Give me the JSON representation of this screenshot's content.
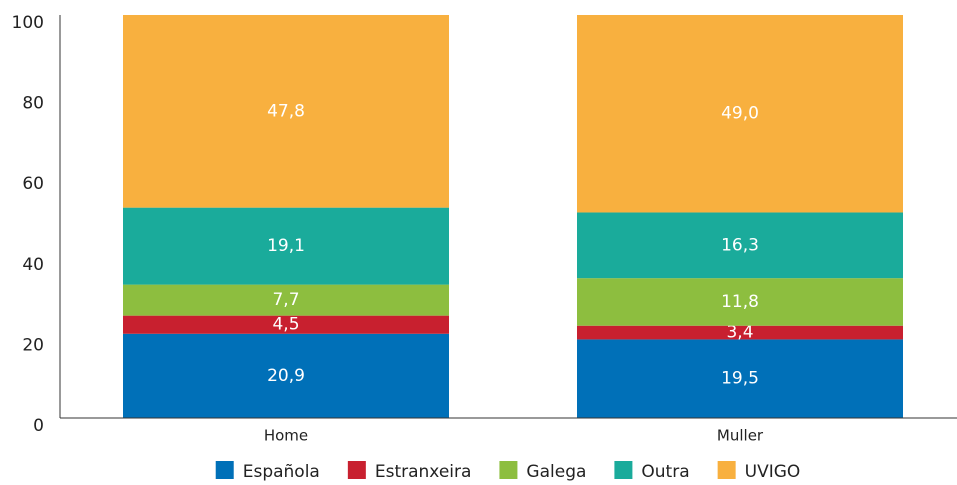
{
  "chart_data": {
    "type": "stacked_bar",
    "categories": [
      "Home",
      "Muller"
    ],
    "series": [
      {
        "name": "Española",
        "color": "#0070b8",
        "values": [
          20.9,
          19.5
        ],
        "value_labels": [
          "20,9",
          "19,5"
        ]
      },
      {
        "name": "Estranxeira",
        "color": "#c8202f",
        "values": [
          4.5,
          3.4
        ],
        "value_labels": [
          "4,5",
          "3,4"
        ]
      },
      {
        "name": "Galega",
        "color": "#8dbe3f",
        "values": [
          7.7,
          11.8
        ],
        "value_labels": [
          "7,7",
          "11,8"
        ]
      },
      {
        "name": "Outra",
        "color": "#1aab9b",
        "values": [
          19.1,
          16.3
        ],
        "value_labels": [
          "19,1",
          "16,3"
        ]
      },
      {
        "name": "UVIGO",
        "color": "#f8b03f",
        "values": [
          47.8,
          49.0
        ],
        "value_labels": [
          "47,8",
          "49,0"
        ]
      }
    ],
    "ylim": [
      0,
      100
    ],
    "yticks": [
      0,
      20,
      40,
      60,
      80,
      100
    ],
    "legend": "bottom"
  }
}
